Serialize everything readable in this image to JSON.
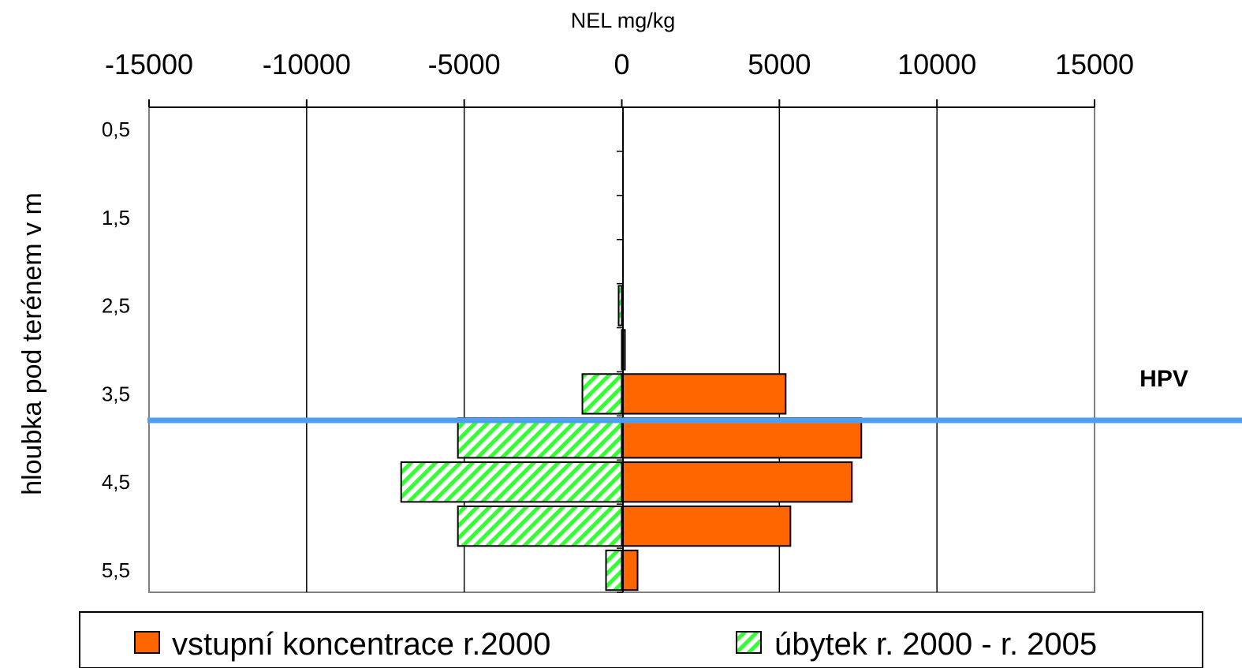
{
  "chart_data": {
    "type": "bar",
    "orientation": "horizontal",
    "title": "NEL mg/kg",
    "ylabel": "hloubka pod terénem v m",
    "xlim": [
      -15000,
      15000
    ],
    "x_ticks": [
      -15000,
      -10000,
      -5000,
      0,
      5000,
      10000,
      15000
    ],
    "x_tick_labels": [
      "-15000",
      "-10000",
      "-5000",
      "0",
      "5000",
      "10000",
      "15000"
    ],
    "x_axis_position": "top",
    "grid": "vertical major lines",
    "depths": [
      0.5,
      1.0,
      1.5,
      2.0,
      2.5,
      3.0,
      3.5,
      4.0,
      4.5,
      5.0,
      5.5
    ],
    "y_tick_labels": [
      "0,5",
      "1,5",
      "2,5",
      "3,5",
      "4,5",
      "5,5"
    ],
    "series": [
      {
        "name": "vstupní koncentrace r.2000",
        "color": "#ff6600",
        "pattern": "solid",
        "values": [
          0,
          0,
          0,
          0,
          0,
          100,
          5200,
          7600,
          7300,
          5350,
          500
        ]
      },
      {
        "name": "úbytek r. 2000 - r. 2005",
        "color": "#33ff33",
        "pattern": "diagonal-hatch",
        "values": [
          0,
          0,
          0,
          0,
          -100,
          0,
          -1250,
          -5200,
          -7000,
          -5200,
          -500
        ]
      }
    ],
    "annotations": [
      {
        "text": "HPV",
        "depth": 3.8,
        "line_color": "#4f9ff0"
      }
    ],
    "legend": {
      "position": "bottom",
      "entries": [
        "vstupní koncentrace r.2000",
        "úbytek r. 2000 - r. 2005"
      ]
    }
  }
}
